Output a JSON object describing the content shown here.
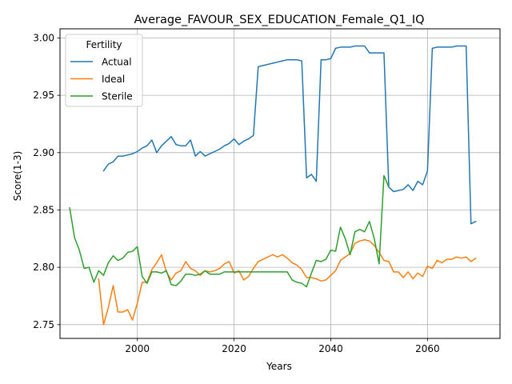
{
  "chart_data": {
    "type": "line",
    "title": "Average_FAVOUR_SEX_EDUCATION_Female_Q1_IQ",
    "xlabel": "Years",
    "ylabel": "Score(1-3)",
    "xlim": [
      1984,
      2075
    ],
    "ylim": [
      2.738,
      3.008
    ],
    "xticks": [
      2000,
      2020,
      2040,
      2060
    ],
    "yticks": [
      2.75,
      2.8,
      2.85,
      2.9,
      2.95,
      3.0
    ],
    "ytick_labels": [
      "2.75",
      "2.80",
      "2.85",
      "2.90",
      "2.95",
      "3.00"
    ],
    "grid": true,
    "legend": {
      "title": "Fertility",
      "position": "upper-left"
    },
    "series": [
      {
        "name": "Actual",
        "color": "#1f77b4",
        "x": [
          1993,
          1994,
          1995,
          1996,
          1997,
          1998,
          1999,
          2000,
          2001,
          2002,
          2003,
          2004,
          2005,
          2006,
          2007,
          2008,
          2009,
          2010,
          2011,
          2012,
          2013,
          2014,
          2015,
          2016,
          2017,
          2018,
          2019,
          2020,
          2021,
          2022,
          2023,
          2024,
          2025,
          2026,
          2027,
          2028,
          2029,
          2030,
          2031,
          2032,
          2033,
          2034,
          2035,
          2036,
          2037,
          2038,
          2039,
          2040,
          2041,
          2042,
          2043,
          2044,
          2045,
          2046,
          2047,
          2048,
          2049,
          2050,
          2051,
          2052,
          2053,
          2054,
          2055,
          2056,
          2057,
          2058,
          2059,
          2060,
          2061,
          2062,
          2063,
          2064,
          2065,
          2066,
          2067,
          2068,
          2069,
          2070
        ],
        "y": [
          2.884,
          2.89,
          2.892,
          2.897,
          2.897,
          2.898,
          2.899,
          2.901,
          2.904,
          2.906,
          2.911,
          2.9,
          2.906,
          2.91,
          2.914,
          2.907,
          2.906,
          2.906,
          2.911,
          2.897,
          2.901,
          2.897,
          2.899,
          2.901,
          2.903,
          2.906,
          2.908,
          2.912,
          2.907,
          2.91,
          2.912,
          2.915,
          2.975,
          2.976,
          2.977,
          2.978,
          2.979,
          2.98,
          2.981,
          2.981,
          2.981,
          2.98,
          2.878,
          2.881,
          2.875,
          2.981,
          2.981,
          2.982,
          2.991,
          2.992,
          2.992,
          2.992,
          2.993,
          2.993,
          2.993,
          2.987,
          2.987,
          2.987,
          2.987,
          2.87,
          2.866,
          2.867,
          2.868,
          2.872,
          2.867,
          2.875,
          2.872,
          2.884,
          2.991,
          2.992,
          2.992,
          2.992,
          2.992,
          2.993,
          2.993,
          2.993,
          2.838,
          2.84
        ]
      },
      {
        "name": "Ideal",
        "color": "#ff7f0e",
        "x": [
          1992,
          1993,
          1994,
          1995,
          1996,
          1997,
          1998,
          1999,
          2000,
          2001,
          2002,
          2003,
          2004,
          2005,
          2006,
          2007,
          2008,
          2009,
          2010,
          2011,
          2012,
          2013,
          2014,
          2015,
          2016,
          2017,
          2018,
          2019,
          2020,
          2021,
          2022,
          2023,
          2024,
          2025,
          2026,
          2027,
          2028,
          2029,
          2030,
          2031,
          2032,
          2033,
          2034,
          2035,
          2036,
          2037,
          2038,
          2039,
          2040,
          2041,
          2042,
          2043,
          2044,
          2045,
          2046,
          2047,
          2048,
          2049,
          2050,
          2051,
          2052,
          2053,
          2054,
          2055,
          2056,
          2057,
          2058,
          2059,
          2060,
          2061,
          2062,
          2063,
          2064,
          2065,
          2066,
          2067,
          2068,
          2069,
          2070
        ],
        "y": [
          2.79,
          2.75,
          2.765,
          2.784,
          2.761,
          2.761,
          2.763,
          2.754,
          2.769,
          2.787,
          2.787,
          2.798,
          2.804,
          2.811,
          2.796,
          2.789,
          2.795,
          2.797,
          2.805,
          2.799,
          2.797,
          2.793,
          2.797,
          2.796,
          2.797,
          2.799,
          2.803,
          2.805,
          2.795,
          2.797,
          2.789,
          2.792,
          2.799,
          2.805,
          2.807,
          2.809,
          2.811,
          2.809,
          2.811,
          2.808,
          2.804,
          2.802,
          2.798,
          2.791,
          2.791,
          2.79,
          2.788,
          2.789,
          2.793,
          2.797,
          2.806,
          2.809,
          2.812,
          2.821,
          2.823,
          2.824,
          2.823,
          2.819,
          2.813,
          2.806,
          2.805,
          2.796,
          2.796,
          2.791,
          2.796,
          2.79,
          2.795,
          2.792,
          2.801,
          2.799,
          2.806,
          2.804,
          2.807,
          2.807,
          2.809,
          2.808,
          2.809,
          2.805,
          2.808
        ]
      },
      {
        "name": "Sterile",
        "color": "#2ca02c",
        "x": [
          1986,
          1987,
          1988,
          1989,
          1990,
          1991,
          1992,
          1993,
          1994,
          1995,
          1996,
          1997,
          1998,
          1999,
          2000,
          2001,
          2002,
          2003,
          2004,
          2005,
          2006,
          2007,
          2008,
          2009,
          2010,
          2011,
          2012,
          2013,
          2014,
          2015,
          2016,
          2017,
          2018,
          2019,
          2020,
          2021,
          2022,
          2023,
          2024,
          2025,
          2026,
          2027,
          2028,
          2029,
          2030,
          2031,
          2032,
          2033,
          2034,
          2035,
          2036,
          2037,
          2038,
          2039,
          2040,
          2041,
          2042,
          2043,
          2044,
          2045,
          2046,
          2047,
          2048,
          2049,
          2050,
          2051,
          2052
        ],
        "y": [
          2.852,
          2.826,
          2.815,
          2.799,
          2.8,
          2.787,
          2.797,
          2.793,
          2.804,
          2.81,
          2.806,
          2.808,
          2.813,
          2.814,
          2.818,
          2.792,
          2.786,
          2.796,
          2.796,
          2.795,
          2.797,
          2.785,
          2.784,
          2.788,
          2.794,
          2.794,
          2.793,
          2.794,
          2.797,
          2.794,
          2.794,
          2.794,
          2.796,
          2.796,
          2.796,
          2.796,
          2.796,
          2.796,
          2.796,
          2.796,
          2.796,
          2.796,
          2.796,
          2.796,
          2.796,
          2.796,
          2.789,
          2.787,
          2.786,
          2.783,
          2.795,
          2.806,
          2.805,
          2.807,
          2.815,
          2.814,
          2.835,
          2.825,
          2.811,
          2.831,
          2.833,
          2.831,
          2.84,
          2.825,
          2.803,
          2.88,
          2.87
        ]
      }
    ]
  }
}
